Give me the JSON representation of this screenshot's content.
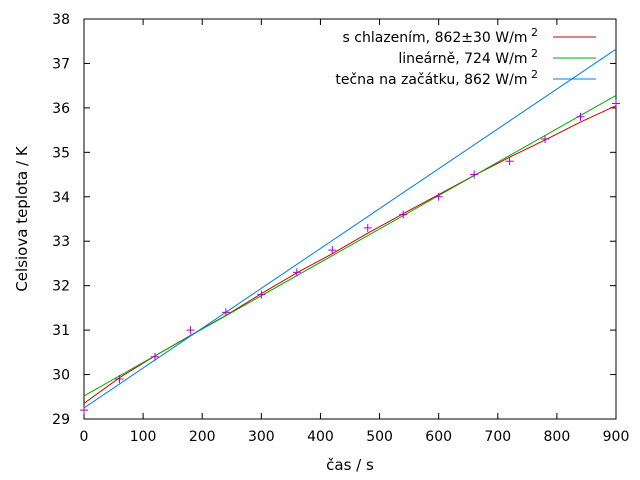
{
  "chart_data": {
    "type": "line",
    "xlabel": "čas / s",
    "ylabel": "Celsiova teplota / K",
    "xlim": [
      0,
      900
    ],
    "ylim": [
      29,
      38
    ],
    "xticks": [
      0,
      100,
      200,
      300,
      400,
      500,
      600,
      700,
      800,
      900
    ],
    "yticks": [
      29,
      30,
      31,
      32,
      33,
      34,
      35,
      36,
      37,
      38
    ],
    "grid": false,
    "legend_position": "top-right",
    "series": [
      {
        "name": "s chlazením, 862±30 W/m",
        "name_superscript": "2",
        "color": "#cc0000",
        "type": "line",
        "x": [
          0,
          60,
          120,
          180,
          240,
          300,
          360,
          420,
          480,
          540,
          600,
          660,
          720,
          780,
          840,
          900
        ],
        "y": [
          29.35,
          29.93,
          30.42,
          30.88,
          31.33,
          31.82,
          32.29,
          32.72,
          33.18,
          33.62,
          34.05,
          34.48,
          34.89,
          35.28,
          35.68,
          36.05
        ]
      },
      {
        "name": "lineárně, 724 W/m",
        "name_superscript": "2",
        "color": "#00aa00",
        "type": "line",
        "x": [
          0,
          900
        ],
        "y": [
          29.52,
          36.28
        ]
      },
      {
        "name": "tečna na začátku, 862 W/m",
        "name_superscript": "2",
        "color": "#0080dd",
        "type": "line",
        "x": [
          0,
          900
        ],
        "y": [
          29.25,
          37.32
        ]
      },
      {
        "name": "",
        "color": "#aa00cc",
        "type": "scatter",
        "marker": "plus",
        "x": [
          0,
          60,
          120,
          180,
          240,
          300,
          360,
          420,
          480,
          540,
          600,
          660,
          720,
          780,
          840,
          900
        ],
        "y": [
          29.2,
          29.9,
          30.4,
          31.0,
          31.4,
          31.8,
          32.3,
          32.8,
          33.3,
          33.6,
          34.0,
          34.5,
          34.8,
          35.3,
          35.8,
          36.1
        ]
      }
    ]
  }
}
